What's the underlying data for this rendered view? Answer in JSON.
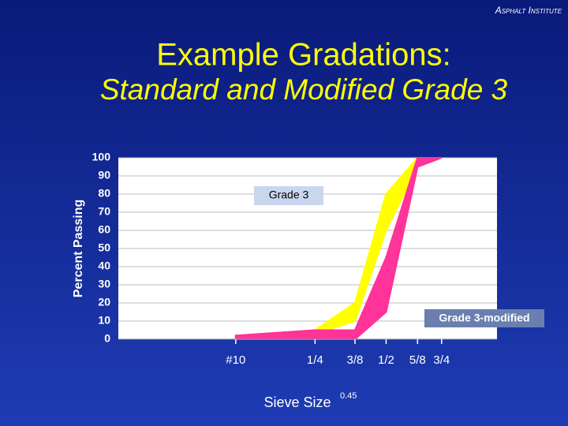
{
  "header": "Asphalt Institute",
  "chart_data": {
    "type": "band",
    "title": "Example Gradations:",
    "subtitle": "Standard and Modified Grade 3",
    "ylabel": "Percent Passing",
    "xlabel": "Sieve Size",
    "x_power": 0.45,
    "x": [
      2,
      6.3,
      9.5,
      12.5,
      16,
      19
    ],
    "xlim": [
      0,
      27
    ],
    "xticks": [
      {
        "value": 2,
        "label": "#10"
      },
      {
        "value": 6.3,
        "label": "1/4"
      },
      {
        "value": 9.5,
        "label": "3/8"
      },
      {
        "value": 12.5,
        "label": "1/2"
      },
      {
        "value": 16,
        "label": "5/8"
      },
      {
        "value": 19,
        "label": "3/4"
      }
    ],
    "ylim": [
      0,
      100
    ],
    "yticks": [
      0,
      10,
      20,
      30,
      40,
      50,
      60,
      70,
      80,
      90,
      100
    ],
    "grid": true,
    "series": [
      {
        "name": "Grade 3",
        "color": "#ffff00",
        "upper": [
          2,
          5,
          20,
          80,
          100,
          100
        ],
        "lower": [
          1,
          3,
          10,
          60,
          95,
          100
        ]
      },
      {
        "name": "Grade 3-modified",
        "color": "#ff3399",
        "upper": [
          2,
          5,
          5,
          45,
          100,
          100
        ],
        "lower": [
          0,
          0,
          0,
          15,
          95,
          100
        ]
      }
    ]
  }
}
